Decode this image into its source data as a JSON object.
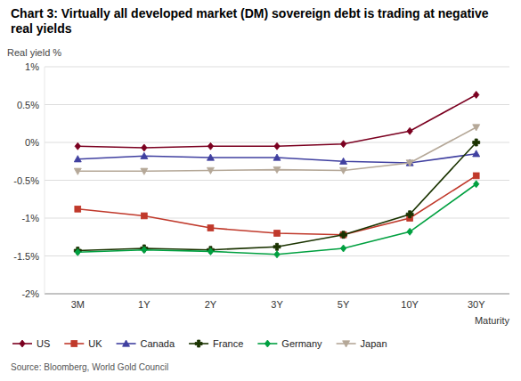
{
  "chart_data": {
    "type": "line",
    "title": "Chart 3: Virtually all developed market (DM) sovereign debt is trading at negative real yields",
    "y_label": "Real yield %",
    "x_label": "Maturity",
    "source": "Source: Bloomberg, World Gold Council",
    "categories": [
      "3M",
      "1Y",
      "2Y",
      "3Y",
      "5Y",
      "10Y",
      "30Y"
    ],
    "series": [
      {
        "name": "US",
        "color": "#7b0020",
        "marker": "diamond",
        "values": [
          -0.05,
          -0.07,
          -0.05,
          -0.05,
          -0.02,
          0.15,
          0.63
        ]
      },
      {
        "name": "UK",
        "color": "#c0392b",
        "marker": "square",
        "values": [
          -0.88,
          -0.97,
          -1.13,
          -1.2,
          -1.22,
          -1.0,
          -0.44
        ]
      },
      {
        "name": "Canada",
        "color": "#4040a0",
        "marker": "triangle-up",
        "values": [
          -0.22,
          -0.18,
          -0.2,
          -0.2,
          -0.25,
          -0.27,
          -0.15
        ]
      },
      {
        "name": "France",
        "color": "#1a3300",
        "marker": "plus",
        "values": [
          -1.43,
          -1.4,
          -1.42,
          -1.38,
          -1.22,
          -0.95,
          0.0
        ]
      },
      {
        "name": "Germany",
        "color": "#00a040",
        "marker": "diamond",
        "values": [
          -1.45,
          -1.42,
          -1.44,
          -1.48,
          -1.4,
          -1.18,
          -0.55
        ]
      },
      {
        "name": "Japan",
        "color": "#b5a898",
        "marker": "triangle-down",
        "values": [
          -0.38,
          -0.38,
          -0.37,
          -0.36,
          -0.37,
          -0.27,
          0.2
        ]
      }
    ],
    "ylim": [
      -2.0,
      1.0
    ],
    "yticks": [
      {
        "value": -2.0,
        "label": "-2%"
      },
      {
        "value": -1.5,
        "label": "-1.5%"
      },
      {
        "value": -1.0,
        "label": "-1%"
      },
      {
        "value": -0.5,
        "label": "-0.5%"
      },
      {
        "value": 0.0,
        "label": "0%"
      },
      {
        "value": 0.5,
        "label": "0.5%"
      },
      {
        "value": 1.0,
        "label": "1%"
      }
    ],
    "grid": true,
    "legend": "bottom"
  }
}
